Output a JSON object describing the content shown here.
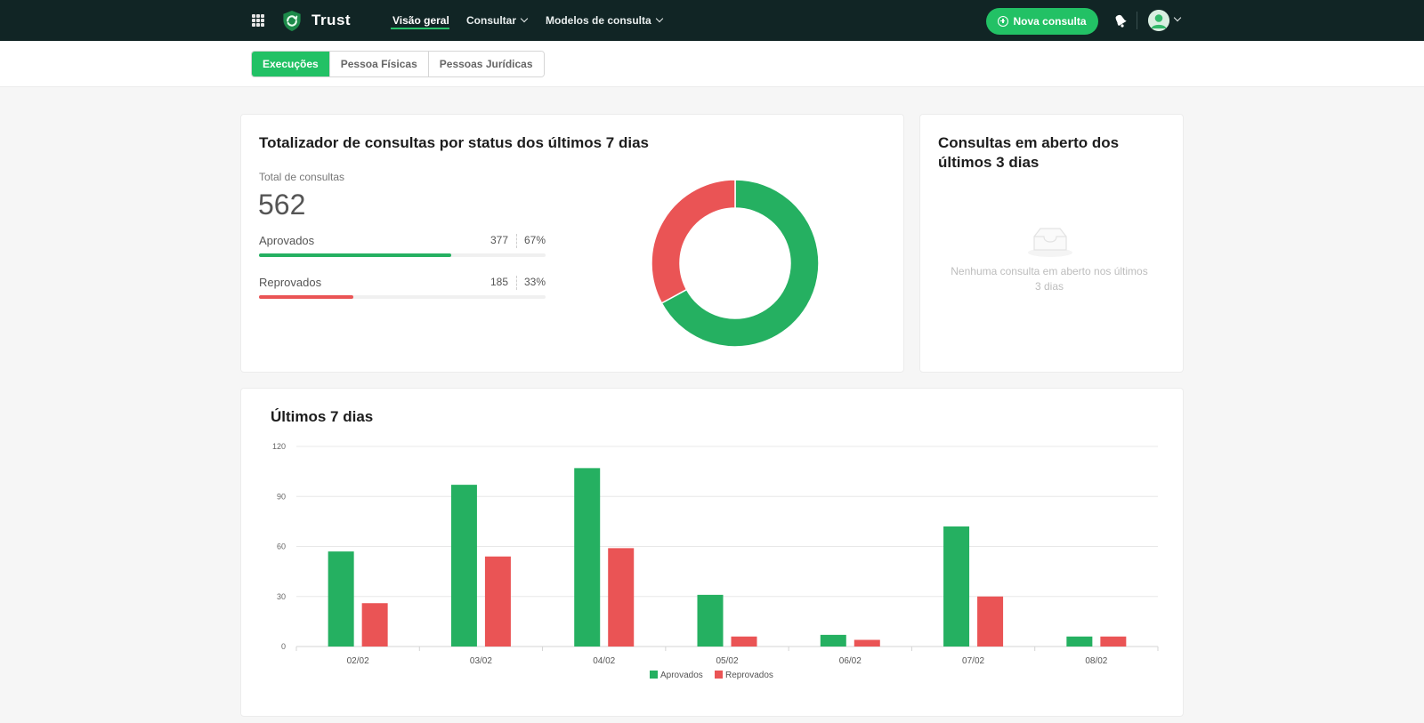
{
  "brand": {
    "name": "Trust"
  },
  "nav": {
    "items": [
      {
        "label": "Visão geral",
        "active": true
      },
      {
        "label": "Consultar",
        "dropdown": true
      },
      {
        "label": "Modelos de consulta",
        "dropdown": true
      }
    ],
    "new_button_label": "Nova consulta"
  },
  "icons": {
    "apps": "grid-icon",
    "logo": "shield-check-icon",
    "new": "plus-circle-icon",
    "notifications": "bell-icon",
    "avatar": "user-avatar",
    "empty": "inbox-icon"
  },
  "tabs": [
    {
      "label": "Execuções",
      "active": true
    },
    {
      "label": "Pessoa Físicas",
      "active": false
    },
    {
      "label": "Pessoas Jurídicas",
      "active": false
    }
  ],
  "colors": {
    "topbar": "#112525",
    "accent": "#22c165",
    "approved": "#25b061",
    "rejected": "#ea5455"
  },
  "summary": {
    "title": "Totalizador de consultas por status dos últimos 7 dias",
    "total_label": "Total de consultas",
    "total_value": "562",
    "approved": {
      "label": "Aprovados",
      "count": "377",
      "pct": "67%",
      "fraction": 0.67
    },
    "rejected": {
      "label": "Reprovados",
      "count": "185",
      "pct": "33%",
      "fraction": 0.33
    }
  },
  "open_queries": {
    "title_line1": "Consultas em aberto dos",
    "title_line2": "últimos 3 dias",
    "empty_line1": "Nenhuma consulta em aberto nos últimos",
    "empty_line2": "3 dias"
  },
  "chart_data": [
    {
      "type": "pie",
      "variant": "donut",
      "categories": [
        "Aprovados",
        "Reprovados"
      ],
      "values": [
        377,
        185
      ],
      "colors": [
        "#25b061",
        "#ea5455"
      ]
    },
    {
      "type": "bar",
      "title": "Últimos 7 dias",
      "categories": [
        "02/02",
        "03/02",
        "04/02",
        "05/02",
        "06/02",
        "07/02",
        "08/02"
      ],
      "series": [
        {
          "name": "Aprovados",
          "color": "#25b061",
          "values": [
            57,
            97,
            107,
            31,
            7,
            72,
            6
          ]
        },
        {
          "name": "Reprovados",
          "color": "#ea5455",
          "values": [
            26,
            54,
            59,
            6,
            4,
            30,
            6
          ]
        }
      ],
      "yticks": [
        "0",
        "30",
        "60",
        "90",
        "120"
      ],
      "ylim": [
        0,
        120
      ],
      "grid": true,
      "legend": "bottom-center"
    }
  ]
}
